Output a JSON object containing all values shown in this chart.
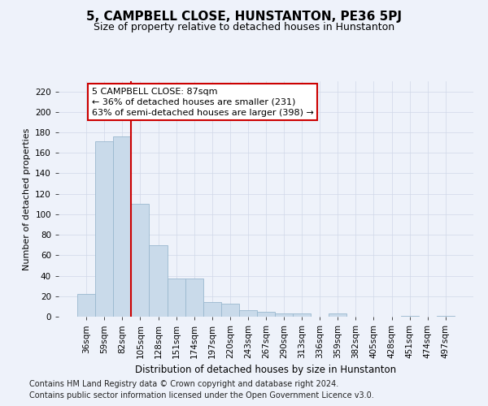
{
  "title": "5, CAMPBELL CLOSE, HUNSTANTON, PE36 5PJ",
  "subtitle": "Size of property relative to detached houses in Hunstanton",
  "xlabel": "Distribution of detached houses by size in Hunstanton",
  "ylabel": "Number of detached properties",
  "footnote1": "Contains HM Land Registry data © Crown copyright and database right 2024.",
  "footnote2": "Contains public sector information licensed under the Open Government Licence v3.0.",
  "categories": [
    "36sqm",
    "59sqm",
    "82sqm",
    "105sqm",
    "128sqm",
    "151sqm",
    "174sqm",
    "197sqm",
    "220sqm",
    "243sqm",
    "267sqm",
    "290sqm",
    "313sqm",
    "336sqm",
    "359sqm",
    "382sqm",
    "405sqm",
    "428sqm",
    "451sqm",
    "474sqm",
    "497sqm"
  ],
  "values": [
    22,
    171,
    176,
    110,
    70,
    37,
    37,
    14,
    13,
    6,
    5,
    3,
    3,
    0,
    3,
    0,
    0,
    0,
    1,
    0,
    1
  ],
  "bar_color": "#c9daea",
  "bar_edge_color": "#9ab8cf",
  "grid_color": "#d0d8e8",
  "vline_color": "#cc0000",
  "vline_x_index": 2,
  "annotation_text": "5 CAMPBELL CLOSE: 87sqm\n← 36% of detached houses are smaller (231)\n63% of semi-detached houses are larger (398) →",
  "annotation_box_color": "white",
  "annotation_box_edge_color": "#cc0000",
  "ylim_max": 230,
  "yticks": [
    0,
    20,
    40,
    60,
    80,
    100,
    120,
    140,
    160,
    180,
    200,
    220
  ],
  "title_fontsize": 11,
  "subtitle_fontsize": 9,
  "axis_label_fontsize": 8.5,
  "ylabel_fontsize": 8,
  "tick_fontsize": 7.5,
  "annotation_fontsize": 8,
  "footnote_fontsize": 7,
  "bg_color": "#eef2fa"
}
